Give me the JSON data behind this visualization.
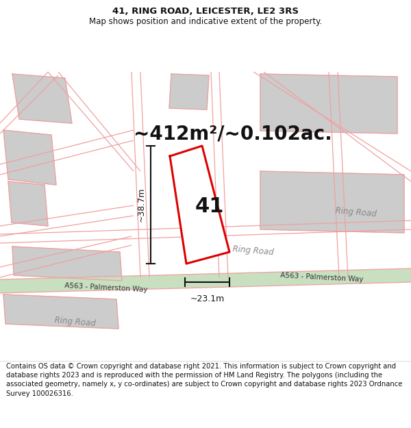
{
  "title_line1": "41, RING ROAD, LEICESTER, LE2 3RS",
  "title_line2": "Map shows position and indicative extent of the property.",
  "footer_text": "Contains OS data © Crown copyright and database right 2021. This information is subject to Crown copyright and database rights 2023 and is reproduced with the permission of HM Land Registry. The polygons (including the associated geometry, namely x, y co-ordinates) are subject to Crown copyright and database rights 2023 Ordnance Survey 100026316.",
  "area_label": "~412m²/~0.102ac.",
  "plot_number": "41",
  "height_label": "~38.7m",
  "width_label": "~23.1m",
  "road_label_mid": "Ring Road",
  "road_label_right": "Ring Road",
  "road_label_botleft": "Ring Road",
  "a563_label_left": "A563 - Palmerston Way",
  "a563_label_right": "A563 - Palmerston Way",
  "bg_color": "#ffffff",
  "map_bg": "#ffffff",
  "road_line_color": "#f0a0a0",
  "green_strip_color": "#c8dfc0",
  "plot_outline_color": "#dd0000",
  "dim_line_color": "#111111",
  "text_color": "#111111",
  "gray_block_color": "#cccccc",
  "title_fontsize": 9.5,
  "subtitle_fontsize": 8.5,
  "footer_fontsize": 7.2,
  "area_fontsize": 20,
  "plot_num_fontsize": 22,
  "dim_fontsize": 9,
  "road_fontsize": 8.5
}
